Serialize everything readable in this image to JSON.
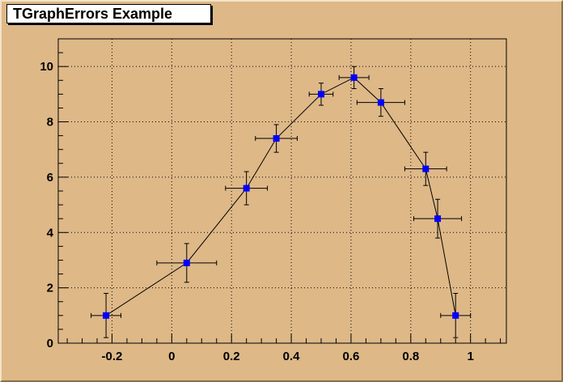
{
  "colors": {
    "background": "#deb887",
    "marker": "#0000ff",
    "line": "#000000",
    "grid": "#000000"
  },
  "chart_data": {
    "type": "scatter",
    "title": "TGraphErrors Example",
    "xlabel": "",
    "ylabel": "",
    "xlim": [
      -0.38,
      1.12
    ],
    "ylim": [
      0,
      11
    ],
    "xticks": [
      -0.2,
      0,
      0.2,
      0.4,
      0.6,
      0.8,
      1
    ],
    "xtick_labels": [
      "-0.2",
      "0",
      "0.2",
      "0.4",
      "0.6",
      "0.8",
      "1"
    ],
    "yticks": [
      0,
      2,
      4,
      6,
      8,
      10
    ],
    "ytick_labels": [
      "0",
      "2",
      "4",
      "6",
      "8",
      "10"
    ],
    "grid": true,
    "marker": "square",
    "connected": true,
    "series": [
      {
        "points": [
          {
            "x": -0.22,
            "y": 1.0,
            "ex": 0.05,
            "ey": 0.8
          },
          {
            "x": 0.05,
            "y": 2.9,
            "ex": 0.1,
            "ey": 0.7
          },
          {
            "x": 0.25,
            "y": 5.6,
            "ex": 0.07,
            "ey": 0.6
          },
          {
            "x": 0.35,
            "y": 7.4,
            "ex": 0.07,
            "ey": 0.5
          },
          {
            "x": 0.5,
            "y": 9.0,
            "ex": 0.04,
            "ey": 0.4
          },
          {
            "x": 0.61,
            "y": 9.6,
            "ex": 0.05,
            "ey": 0.4
          },
          {
            "x": 0.7,
            "y": 8.7,
            "ex": 0.08,
            "ey": 0.5
          },
          {
            "x": 0.85,
            "y": 6.3,
            "ex": 0.07,
            "ey": 0.6
          },
          {
            "x": 0.89,
            "y": 4.5,
            "ex": 0.08,
            "ey": 0.7
          },
          {
            "x": 0.95,
            "y": 1.0,
            "ex": 0.05,
            "ey": 0.8
          }
        ]
      }
    ]
  }
}
